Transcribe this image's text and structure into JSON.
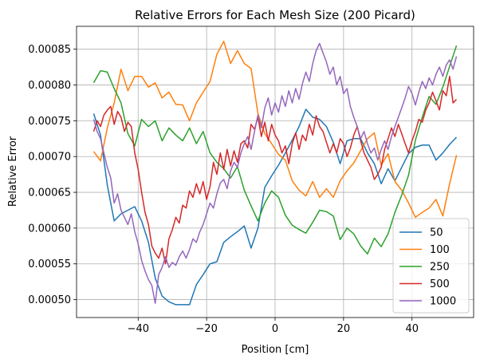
{
  "chart_data": {
    "type": "line",
    "title": "Relative Errors for Each Mesh Size (200 Picard)",
    "xlabel": "Position [cm]",
    "ylabel": "Relative Error",
    "xlim": [
      -58,
      58
    ],
    "ylim": [
      0.000475,
      0.000882
    ],
    "xticks": [
      -40,
      -20,
      0,
      20,
      40
    ],
    "xtick_labels": [
      "−40",
      "−20",
      "0",
      "20",
      "40"
    ],
    "yticks": [
      0.0005,
      0.00055,
      0.0006,
      0.00065,
      0.0007,
      0.00075,
      0.0008,
      0.00085
    ],
    "ytick_labels": [
      "0.00050",
      "0.00055",
      "0.00060",
      "0.00065",
      "0.00070",
      "0.00075",
      "0.00080",
      "0.00085"
    ],
    "grid": true,
    "legend_position": "lower-right",
    "series": [
      {
        "name": "50",
        "color": "#1f77b4",
        "x": [
          -53,
          -51,
          -49,
          -47,
          -45,
          -43,
          -41,
          -39,
          -37,
          -35,
          -33,
          -31,
          -29,
          -27,
          -25,
          -23,
          -21,
          -19,
          -17,
          -15,
          -13,
          -11,
          -9,
          -7,
          -5,
          -3,
          -1,
          1,
          3,
          5,
          7,
          9,
          11,
          13,
          15,
          17,
          19,
          21,
          23,
          25,
          27,
          29,
          31,
          33,
          35,
          37,
          39,
          41,
          43,
          45,
          47,
          49,
          51,
          53
        ],
        "y": [
          0.00076,
          0.00073,
          0.00066,
          0.00061,
          0.00062,
          0.000625,
          0.00063,
          0.00061,
          0.00058,
          0.00053,
          0.000505,
          0.000497,
          0.000493,
          0.000493,
          0.000493,
          0.000521,
          0.000535,
          0.00055,
          0.000553,
          0.00058,
          0.000588,
          0.000595,
          0.000603,
          0.000572,
          0.0006,
          0.000657,
          0.000673,
          0.000688,
          0.000705,
          0.000723,
          0.000742,
          0.000766,
          0.000755,
          0.000752,
          0.000742,
          0.00072,
          0.00069,
          0.000722,
          0.000725,
          0.000725,
          0.000705,
          0.00069,
          0.000662,
          0.000683,
          0.000666,
          0.000685,
          0.000704,
          0.000713,
          0.000716,
          0.000716,
          0.000695,
          0.000705,
          0.000717,
          0.000727
        ]
      },
      {
        "name": "100",
        "color": "#ff7f0e",
        "x": [
          -53,
          -51,
          -49,
          -47,
          -45,
          -43,
          -41,
          -39,
          -37,
          -35,
          -33,
          -31,
          -29,
          -27,
          -25,
          -23,
          -21,
          -19,
          -17,
          -15,
          -13,
          -11,
          -9,
          -7,
          -5,
          -3,
          -1,
          1,
          3,
          5,
          7,
          9,
          11,
          13,
          15,
          17,
          19,
          21,
          23,
          25,
          27,
          29,
          31,
          33,
          35,
          37,
          39,
          41,
          43,
          45,
          47,
          49,
          51,
          53
        ],
        "y": [
          0.000707,
          0.000694,
          0.00074,
          0.000775,
          0.000822,
          0.000792,
          0.000812,
          0.000812,
          0.000797,
          0.000803,
          0.000782,
          0.00079,
          0.000773,
          0.000772,
          0.00075,
          0.000775,
          0.00079,
          0.000805,
          0.000843,
          0.000861,
          0.00083,
          0.000848,
          0.00083,
          0.000823,
          0.00076,
          0.000732,
          0.000718,
          0.000703,
          0.000695,
          0.000666,
          0.000653,
          0.000645,
          0.000665,
          0.000643,
          0.000655,
          0.000643,
          0.000666,
          0.00068,
          0.000691,
          0.000708,
          0.000725,
          0.000733,
          0.000688,
          0.000704,
          0.000665,
          0.000653,
          0.000635,
          0.000615,
          0.000622,
          0.000628,
          0.00064,
          0.000617,
          0.000662,
          0.000702
        ]
      },
      {
        "name": "250",
        "color": "#2ca02c",
        "x": [
          -53,
          -51,
          -49,
          -47,
          -45,
          -43,
          -41,
          -39,
          -37,
          -35,
          -33,
          -31,
          -29,
          -27,
          -25,
          -23,
          -21,
          -19,
          -17,
          -15,
          -13,
          -11,
          -9,
          -7,
          -5,
          -3,
          -1,
          1,
          3,
          5,
          7,
          9,
          11,
          13,
          15,
          17,
          19,
          21,
          23,
          25,
          27,
          29,
          31,
          33,
          35,
          37,
          39,
          41,
          43,
          45,
          47,
          49,
          51,
          53
        ],
        "y": [
          0.000803,
          0.00082,
          0.000818,
          0.000795,
          0.000775,
          0.000732,
          0.000715,
          0.000752,
          0.000742,
          0.00075,
          0.000722,
          0.00074,
          0.00073,
          0.000722,
          0.00074,
          0.000718,
          0.000735,
          0.000705,
          0.000692,
          0.000683,
          0.00067,
          0.000686,
          0.000653,
          0.000631,
          0.00061,
          0.000635,
          0.000652,
          0.000643,
          0.000618,
          0.000604,
          0.000598,
          0.000593,
          0.000608,
          0.000625,
          0.000623,
          0.000617,
          0.000584,
          0.0006,
          0.000592,
          0.000575,
          0.000564,
          0.000586,
          0.000574,
          0.000592,
          0.000622,
          0.000646,
          0.000674,
          0.000723,
          0.000755,
          0.000784,
          0.000773,
          0.000797,
          0.000826,
          0.000855
        ]
      },
      {
        "name": "500",
        "color": "#d62728",
        "x": [
          -53,
          -52,
          -51,
          -50,
          -49,
          -48,
          -47,
          -46,
          -45,
          -44,
          -43,
          -42,
          -41,
          -40,
          -39,
          -38,
          -37,
          -36,
          -35,
          -34,
          -33,
          -32,
          -31,
          -30,
          -29,
          -28,
          -27,
          -26,
          -25,
          -24,
          -23,
          -22,
          -21,
          -20,
          -19,
          -18,
          -17,
          -16,
          -15,
          -14,
          -13,
          -12,
          -11,
          -10,
          -9,
          -8,
          -7,
          -6,
          -5,
          -4,
          -3,
          -2,
          -1,
          0,
          1,
          2,
          3,
          4,
          5,
          6,
          7,
          8,
          9,
          10,
          11,
          12,
          13,
          14,
          15,
          16,
          17,
          18,
          19,
          20,
          21,
          22,
          23,
          24,
          25,
          26,
          27,
          28,
          29,
          30,
          31,
          32,
          33,
          34,
          35,
          36,
          37,
          38,
          39,
          40,
          41,
          42,
          43,
          44,
          45,
          46,
          47,
          48,
          49,
          50,
          51,
          52,
          53
        ],
        "y": [
          0.000735,
          0.00075,
          0.000742,
          0.000758,
          0.000765,
          0.00077,
          0.000745,
          0.000763,
          0.000755,
          0.000735,
          0.000748,
          0.000742,
          0.000705,
          0.000682,
          0.00065,
          0.000622,
          0.000605,
          0.000575,
          0.000565,
          0.000558,
          0.000572,
          0.00055,
          0.000585,
          0.000598,
          0.000615,
          0.000607,
          0.000632,
          0.000628,
          0.000652,
          0.000643,
          0.000662,
          0.000648,
          0.000665,
          0.00064,
          0.000658,
          0.000692,
          0.000675,
          0.000705,
          0.000682,
          0.00071,
          0.000687,
          0.000708,
          0.000692,
          0.000718,
          0.000722,
          0.000712,
          0.000745,
          0.000738,
          0.000755,
          0.000728,
          0.000748,
          0.000722,
          0.000745,
          0.00073,
          0.000722,
          0.000705,
          0.000715,
          0.00069,
          0.000718,
          0.000733,
          0.00071,
          0.00073,
          0.000722,
          0.000745,
          0.00073,
          0.000757,
          0.000742,
          0.000735,
          0.00072,
          0.000705,
          0.000718,
          0.000705,
          0.000725,
          0.000718,
          0.0007,
          0.000712,
          0.00073,
          0.000742,
          0.000722,
          0.000705,
          0.000695,
          0.000685,
          0.000668,
          0.000675,
          0.000685,
          0.00071,
          0.000725,
          0.00074,
          0.000728,
          0.000745,
          0.000732,
          0.000718,
          0.000705,
          0.000722,
          0.000735,
          0.000752,
          0.000748,
          0.000765,
          0.000775,
          0.00079,
          0.000778,
          0.000765,
          0.000792,
          0.000785,
          0.000812,
          0.000775,
          0.00078
        ]
      },
      {
        "name": "1000",
        "color": "#9467bd",
        "x": [
          -53,
          -52,
          -51,
          -50,
          -49,
          -48,
          -47,
          -46,
          -45,
          -44,
          -43,
          -42,
          -41,
          -40,
          -39,
          -38,
          -37,
          -36,
          -35,
          -34,
          -33,
          -32,
          -31,
          -30,
          -29,
          -28,
          -27,
          -26,
          -25,
          -24,
          -23,
          -22,
          -21,
          -20,
          -19,
          -18,
          -17,
          -16,
          -15,
          -14,
          -13,
          -12,
          -11,
          -10,
          -9,
          -8,
          -7,
          -6,
          -5,
          -4,
          -3,
          -2,
          -1,
          0,
          1,
          2,
          3,
          4,
          5,
          6,
          7,
          8,
          9,
          10,
          11,
          12,
          13,
          14,
          15,
          16,
          17,
          18,
          19,
          20,
          21,
          22,
          23,
          24,
          25,
          26,
          27,
          28,
          29,
          30,
          31,
          32,
          33,
          34,
          35,
          36,
          37,
          38,
          39,
          40,
          41,
          42,
          43,
          44,
          45,
          46,
          47,
          48,
          49,
          50,
          51,
          52,
          53
        ],
        "y": [
          0.000752,
          0.000735,
          0.000725,
          0.000705,
          0.000685,
          0.00067,
          0.000635,
          0.000648,
          0.000625,
          0.000615,
          0.000605,
          0.00062,
          0.000595,
          0.000578,
          0.000555,
          0.00054,
          0.000528,
          0.00052,
          0.000495,
          0.000535,
          0.000545,
          0.00056,
          0.000545,
          0.000552,
          0.000548,
          0.00056,
          0.000568,
          0.000558,
          0.00057,
          0.000585,
          0.00058,
          0.000595,
          0.000605,
          0.00062,
          0.000635,
          0.000628,
          0.000648,
          0.000663,
          0.000668,
          0.000655,
          0.00068,
          0.000692,
          0.000685,
          0.000705,
          0.000718,
          0.000728,
          0.00071,
          0.000735,
          0.000758,
          0.00074,
          0.000768,
          0.000782,
          0.000758,
          0.000775,
          0.000762,
          0.000785,
          0.00077,
          0.000792,
          0.000775,
          0.000795,
          0.00078,
          0.000802,
          0.000818,
          0.000805,
          0.00083,
          0.000848,
          0.000858,
          0.000845,
          0.000832,
          0.000815,
          0.000825,
          0.0008,
          0.000812,
          0.000788,
          0.000795,
          0.00077,
          0.000755,
          0.000742,
          0.000725,
          0.000735,
          0.000718,
          0.000705,
          0.000712,
          0.000695,
          0.00071,
          0.000722,
          0.00071,
          0.000728,
          0.000742,
          0.000755,
          0.000768,
          0.000782,
          0.000798,
          0.000788,
          0.000772,
          0.00079,
          0.000805,
          0.000795,
          0.00081,
          0.0008,
          0.000815,
          0.000825,
          0.000812,
          0.000828,
          0.000835,
          0.000822,
          0.00084
        ]
      }
    ]
  }
}
